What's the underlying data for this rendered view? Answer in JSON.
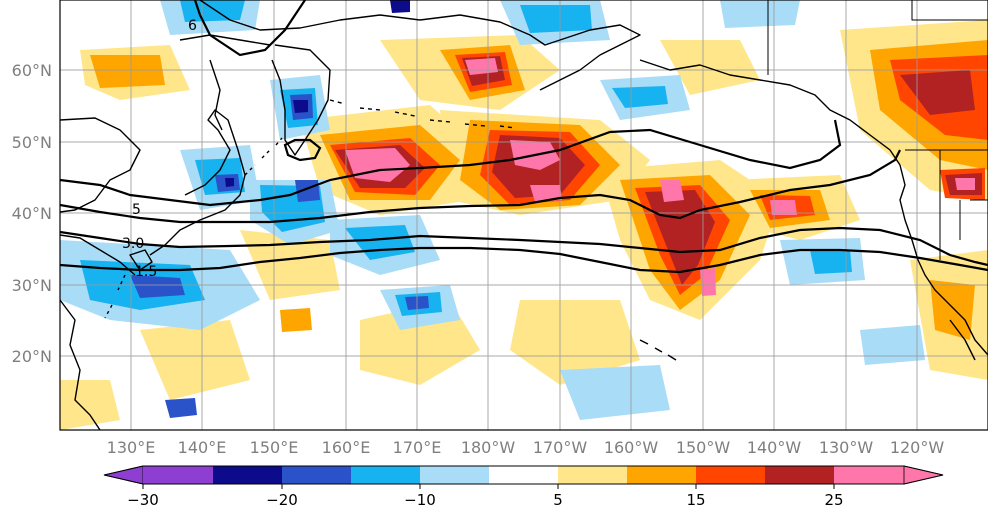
{
  "map": {
    "lon_labels": [
      "130°E",
      "140°E",
      "150°E",
      "160°E",
      "170°E",
      "180°W",
      "170°W",
      "160°W",
      "150°W",
      "140°W",
      "130°W",
      "120°W"
    ],
    "lat_labels": [
      "60°N",
      "50°N",
      "40°N",
      "30°N",
      "20°N"
    ],
    "contour_labels": [
      "6",
      "5",
      "3.0",
      "1.5"
    ],
    "grid": true,
    "gridline_color": "#9a9a9a",
    "tick_label_color": "#7f7f7f"
  },
  "colorbar": {
    "tick_labels": [
      "−30",
      "−20",
      "−10",
      "5",
      "15",
      "25"
    ],
    "bins": [
      {
        "range": "< -30",
        "color": "#8e3fd1"
      },
      {
        "range": "-30 to -25",
        "color": "#8e3fd1"
      },
      {
        "range": "-25 to -20",
        "color": "#0b0b8c"
      },
      {
        "range": "-20 to -15",
        "color": "#2a52c9"
      },
      {
        "range": "-15 to -10",
        "color": "#17b2f0"
      },
      {
        "range": "-10 to -5",
        "color": "#a9dcf7"
      },
      {
        "range": "-5 to 5",
        "color": "#ffffff"
      },
      {
        "range": "5 to 10",
        "color": "#ffe68a"
      },
      {
        "range": "10 to 15",
        "color": "#ffa500"
      },
      {
        "range": "15 to 20",
        "color": "#ff4500"
      },
      {
        "range": "20 to 25",
        "color": "#b22222"
      },
      {
        "range": "> 25",
        "color": "#ff77aa"
      }
    ],
    "extend": "both"
  },
  "icons": {
    "land": "coastline-lines",
    "contour": "black-contour-lines"
  }
}
